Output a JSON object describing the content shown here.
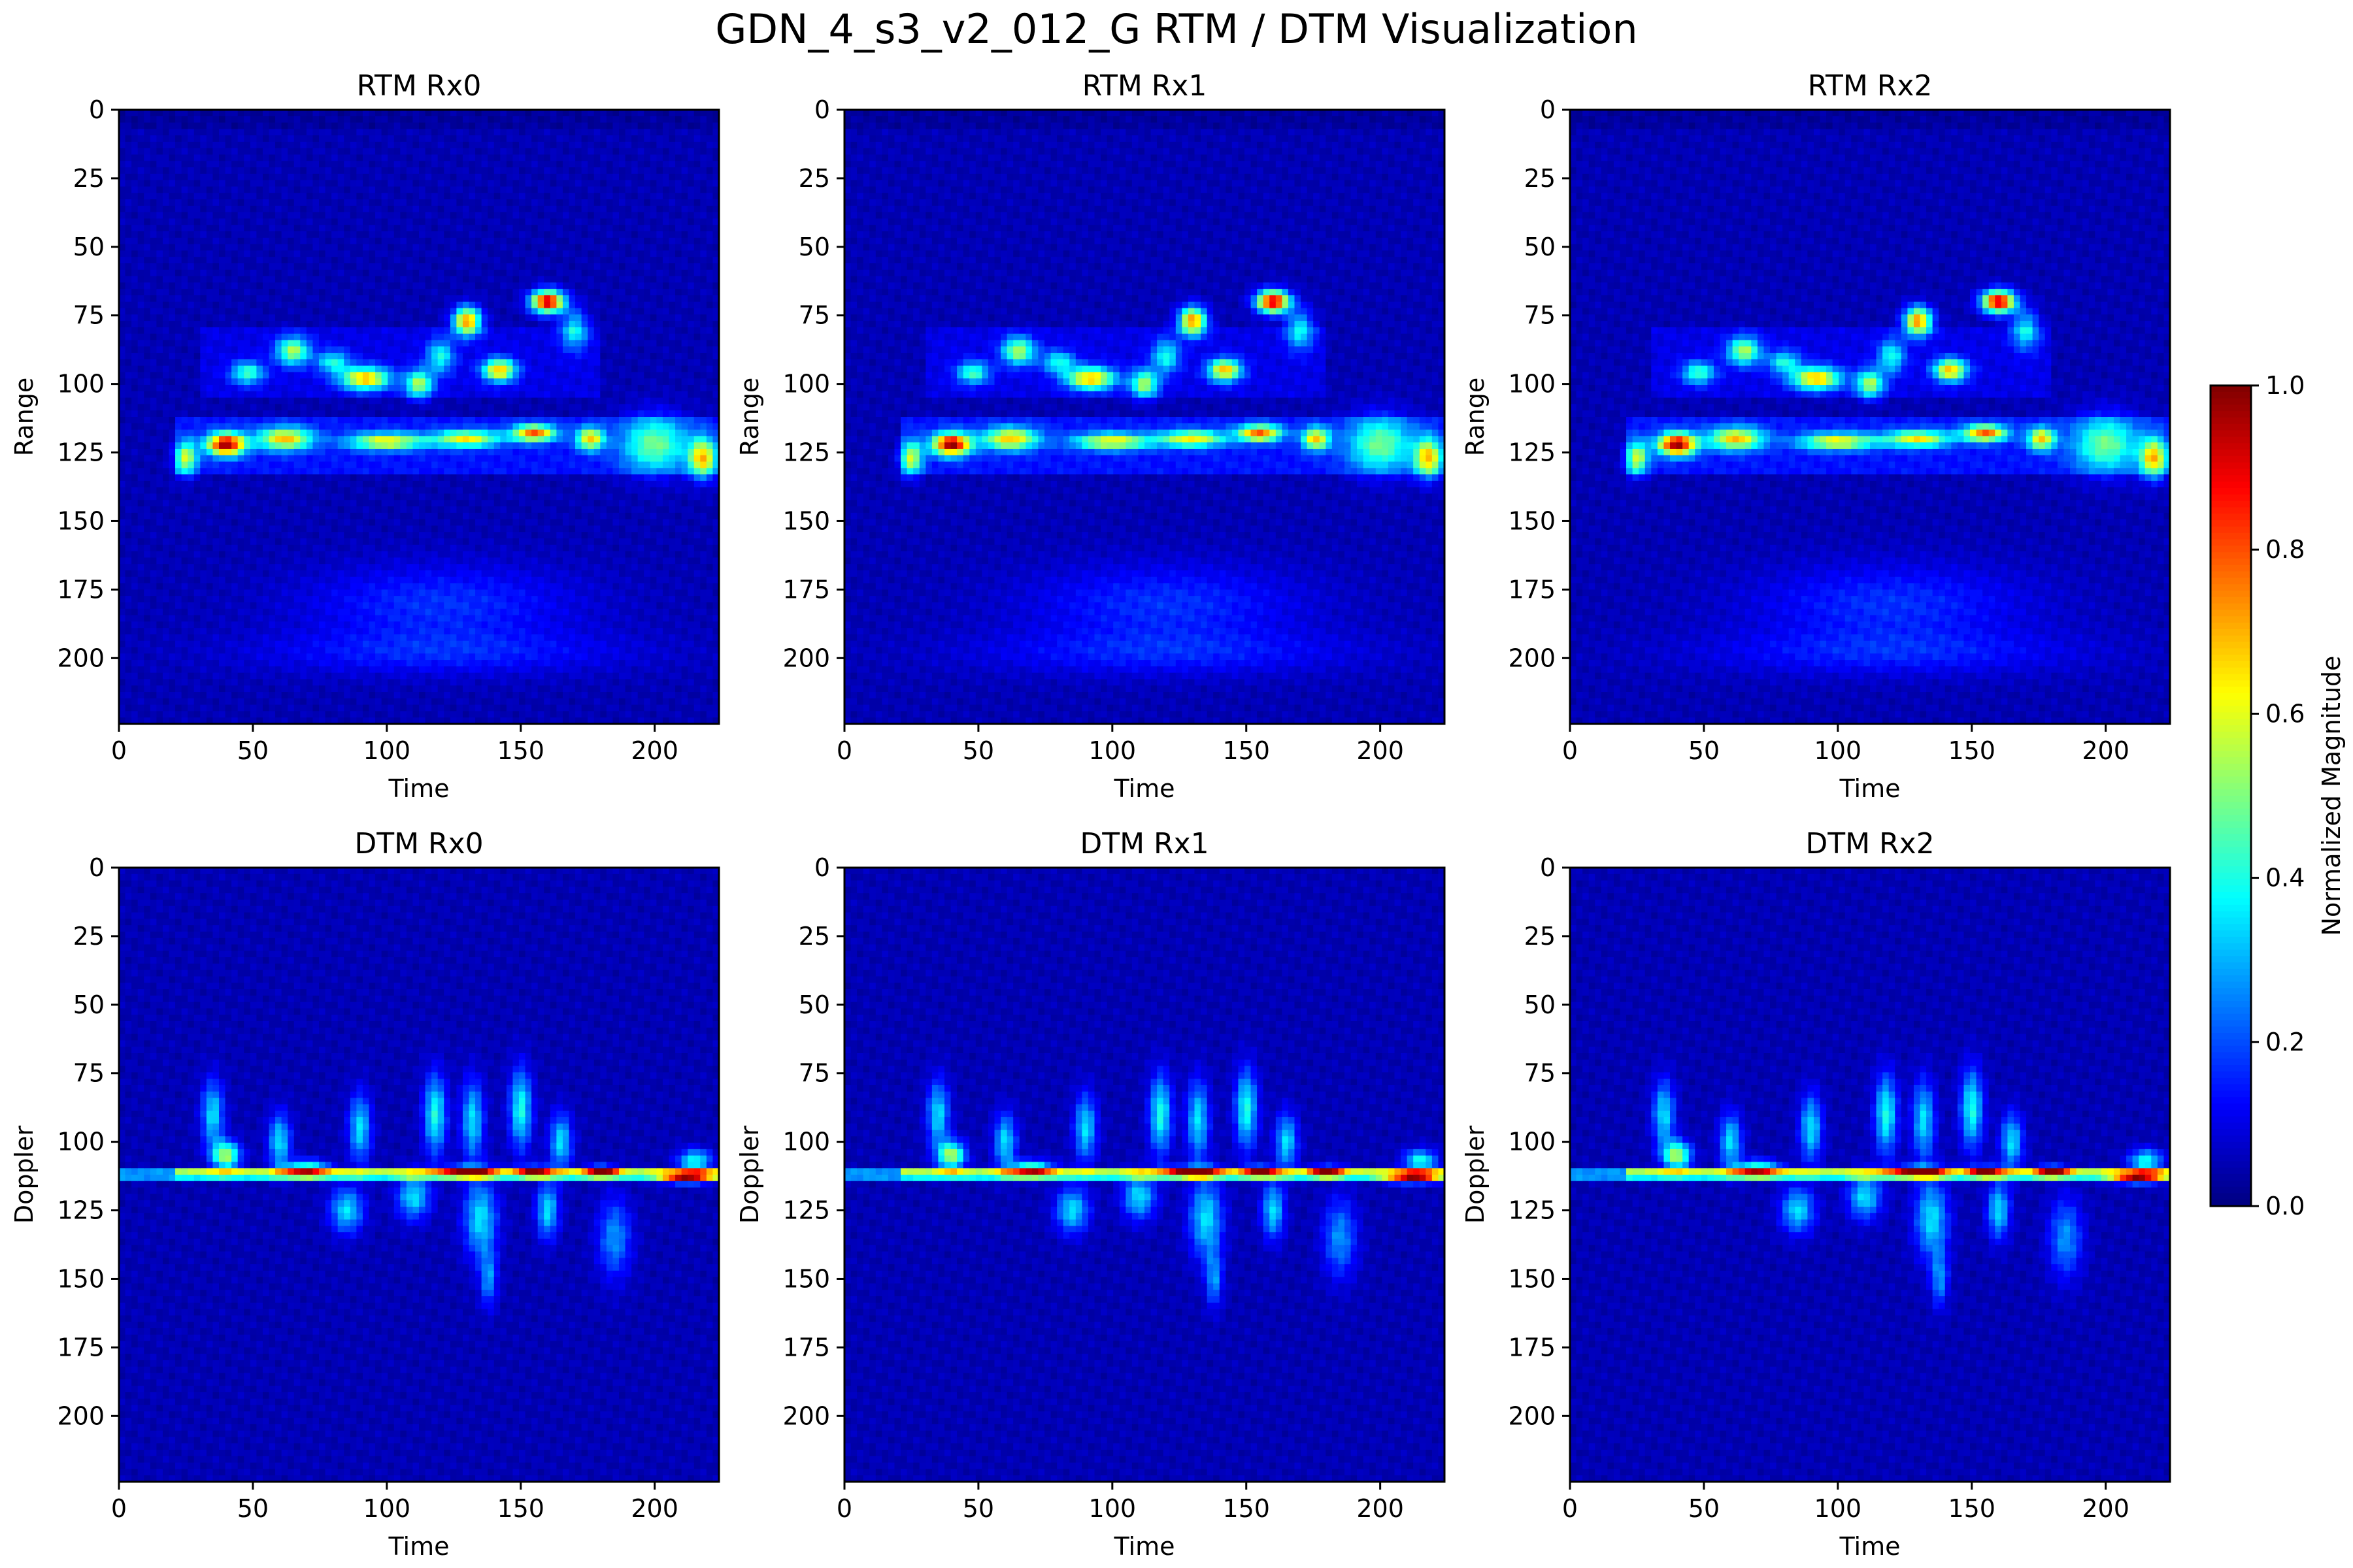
{
  "figure": {
    "title": "GDN_4_s3_v2_012_G RTM / DTM Visualization"
  },
  "chart_data": [
    {
      "type": "heatmap",
      "kind": "rtm",
      "title": "RTM Rx0",
      "xlabel": "Time",
      "ylabel": "Range",
      "xlim": [
        0,
        224
      ],
      "ylim": [
        224,
        0
      ],
      "xticks": [
        0,
        50,
        100,
        150,
        200
      ],
      "yticks": [
        0,
        25,
        50,
        75,
        100,
        125,
        150,
        175,
        200
      ],
      "colormap": "jet",
      "vmin": 0,
      "vmax": 1
    },
    {
      "type": "heatmap",
      "kind": "rtm",
      "title": "RTM Rx1",
      "xlabel": "Time",
      "ylabel": "Range",
      "xlim": [
        0,
        224
      ],
      "ylim": [
        224,
        0
      ],
      "xticks": [
        0,
        50,
        100,
        150,
        200
      ],
      "yticks": [
        0,
        25,
        50,
        75,
        100,
        125,
        150,
        175,
        200
      ],
      "colormap": "jet",
      "vmin": 0,
      "vmax": 1
    },
    {
      "type": "heatmap",
      "kind": "rtm",
      "title": "RTM Rx2",
      "xlabel": "Time",
      "ylabel": "Range",
      "xlim": [
        0,
        224
      ],
      "ylim": [
        224,
        0
      ],
      "xticks": [
        0,
        50,
        100,
        150,
        200
      ],
      "yticks": [
        0,
        25,
        50,
        75,
        100,
        125,
        150,
        175,
        200
      ],
      "colormap": "jet",
      "vmin": 0,
      "vmax": 1
    },
    {
      "type": "heatmap",
      "kind": "dtm",
      "title": "DTM Rx0",
      "xlabel": "Time",
      "ylabel": "Doppler",
      "xlim": [
        0,
        224
      ],
      "ylim": [
        224,
        0
      ],
      "xticks": [
        0,
        50,
        100,
        150,
        200
      ],
      "yticks": [
        0,
        25,
        50,
        75,
        100,
        125,
        150,
        175,
        200
      ],
      "colormap": "jet",
      "vmin": 0,
      "vmax": 1
    },
    {
      "type": "heatmap",
      "kind": "dtm",
      "title": "DTM Rx1",
      "xlabel": "Time",
      "ylabel": "Doppler",
      "xlim": [
        0,
        224
      ],
      "ylim": [
        224,
        0
      ],
      "xticks": [
        0,
        50,
        100,
        150,
        200
      ],
      "yticks": [
        0,
        25,
        50,
        75,
        100,
        125,
        150,
        175,
        200
      ],
      "colormap": "jet",
      "vmin": 0,
      "vmax": 1
    },
    {
      "type": "heatmap",
      "kind": "dtm",
      "title": "DTM Rx2",
      "xlabel": "Time",
      "ylabel": "Doppler",
      "xlim": [
        0,
        224
      ],
      "ylim": [
        224,
        0
      ],
      "xticks": [
        0,
        50,
        100,
        150,
        200
      ],
      "yticks": [
        0,
        25,
        50,
        75,
        100,
        125,
        150,
        175,
        200
      ],
      "colormap": "jet",
      "vmin": 0,
      "vmax": 1
    }
  ],
  "colorbar": {
    "label": "Normalized Magnitude",
    "colormap": "jet",
    "range": [
      0,
      1
    ],
    "ticks": [
      "0.0",
      "0.2",
      "0.4",
      "0.6",
      "0.8",
      "1.0"
    ]
  },
  "colors": {
    "background": "#00008f",
    "axis": "#000000"
  }
}
